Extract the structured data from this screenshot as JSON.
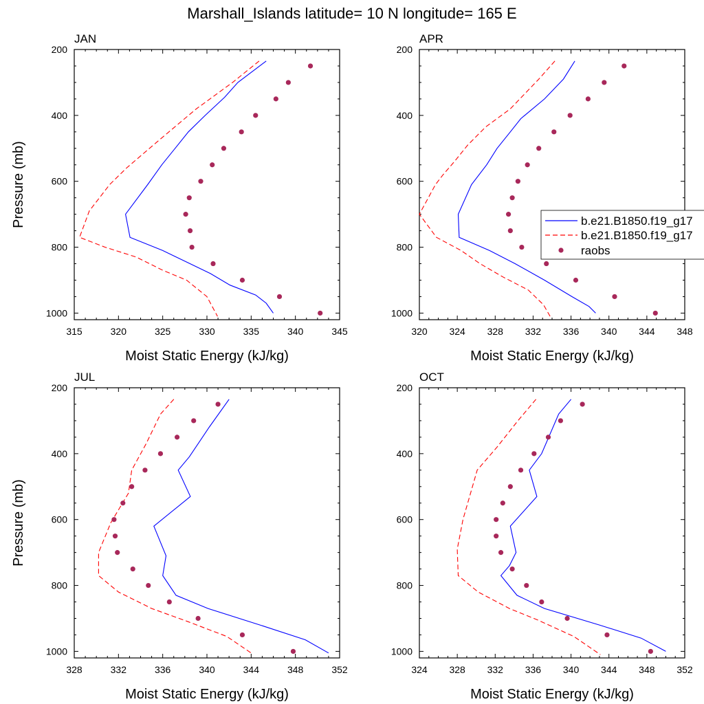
{
  "title": "Marshall_Islands  latitude= 10 N longitude= 165 E",
  "colors": {
    "series1": "#0000ff",
    "series2": "#ff0000",
    "raobs": "#a8285a"
  },
  "legend": {
    "placement": "right of APR panel",
    "entries": [
      "b.e21.B1850.f19_g17",
      "b.e21.B1850.f19_g17",
      "raobs"
    ]
  },
  "chart_data": [
    {
      "type": "line",
      "panel": "JAN",
      "xlabel": "Moist Static Energy (kJ/kg)",
      "ylabel": "Pressure (mb)",
      "xlim": [
        315,
        345
      ],
      "xticks": [
        "315",
        "320",
        "325",
        "330",
        "335",
        "340",
        "345"
      ],
      "ylim": [
        1020,
        200
      ],
      "yticks": [
        "200",
        "400",
        "600",
        "800",
        "1000"
      ],
      "series": [
        {
          "style": "solid",
          "color": "#0000ff",
          "points": [
            [
              336.7,
              235
            ],
            [
              333.5,
              300
            ],
            [
              332.0,
              345
            ],
            [
              329.8,
              400
            ],
            [
              327.9,
              450
            ],
            [
              326.4,
              500
            ],
            [
              324.9,
              550
            ],
            [
              323.3,
              610
            ],
            [
              320.8,
              700
            ],
            [
              321.3,
              770
            ],
            [
              325.0,
              810
            ],
            [
              327.7,
              845
            ],
            [
              330.4,
              880
            ],
            [
              332.6,
              915
            ],
            [
              335.5,
              945
            ],
            [
              336.7,
              970
            ],
            [
              337.5,
              1000
            ]
          ]
        },
        {
          "style": "dashed",
          "color": "#ff0000",
          "points": [
            [
              335.9,
              235
            ],
            [
              332.9,
              300
            ],
            [
              330.6,
              345
            ],
            [
              328.8,
              380
            ],
            [
              325.7,
              450
            ],
            [
              323.5,
              500
            ],
            [
              320.9,
              560
            ],
            [
              319.0,
              610
            ],
            [
              316.7,
              690
            ],
            [
              315.6,
              770
            ],
            [
              318.5,
              800
            ],
            [
              322.0,
              830
            ],
            [
              325.0,
              870
            ],
            [
              327.7,
              900
            ],
            [
              330.0,
              950
            ],
            [
              331.2,
              1010
            ]
          ]
        },
        {
          "style": "dots",
          "color": "#a8285a",
          "points": [
            [
              341.7,
              250
            ],
            [
              339.2,
              300
            ],
            [
              337.8,
              350
            ],
            [
              335.5,
              400
            ],
            [
              333.9,
              450
            ],
            [
              331.9,
              500
            ],
            [
              330.6,
              550
            ],
            [
              329.3,
              600
            ],
            [
              328.0,
              650
            ],
            [
              327.6,
              700
            ],
            [
              328.1,
              750
            ],
            [
              328.3,
              800
            ],
            [
              330.7,
              850
            ],
            [
              334.0,
              900
            ],
            [
              338.2,
              950
            ],
            [
              342.8,
              1000
            ]
          ]
        }
      ]
    },
    {
      "type": "line",
      "panel": "APR",
      "xlabel": "Moist Static Energy (kJ/kg)",
      "ylabel": "",
      "xlim": [
        320,
        348
      ],
      "xticks": [
        "320",
        "324",
        "328",
        "332",
        "336",
        "340",
        "344",
        "348"
      ],
      "ylim": [
        1020,
        200
      ],
      "yticks": [
        "200",
        "400",
        "600",
        "800",
        "1000"
      ],
      "series": [
        {
          "style": "solid",
          "color": "#0000ff",
          "points": [
            [
              336.4,
              235
            ],
            [
              335.2,
              290
            ],
            [
              333.2,
              350
            ],
            [
              330.7,
              410
            ],
            [
              329.6,
              450
            ],
            [
              328.2,
              500
            ],
            [
              327.1,
              550
            ],
            [
              325.5,
              610
            ],
            [
              324.1,
              700
            ],
            [
              324.2,
              770
            ],
            [
              327.4,
              810
            ],
            [
              330.1,
              850
            ],
            [
              333.2,
              900
            ],
            [
              336.1,
              950
            ],
            [
              337.9,
              980
            ],
            [
              338.6,
              1000
            ]
          ]
        },
        {
          "style": "dashed",
          "color": "#ff0000",
          "points": [
            [
              334.3,
              235
            ],
            [
              332.6,
              290
            ],
            [
              329.6,
              380
            ],
            [
              327.0,
              435
            ],
            [
              325.1,
              490
            ],
            [
              323.7,
              540
            ],
            [
              322.5,
              580
            ],
            [
              321.7,
              610
            ],
            [
              320.0,
              700
            ],
            [
              321.8,
              770
            ],
            [
              324.4,
              810
            ],
            [
              326.4,
              850
            ],
            [
              328.8,
              890
            ],
            [
              331.5,
              930
            ],
            [
              333.1,
              975
            ],
            [
              333.8,
              1010
            ]
          ]
        },
        {
          "style": "dots",
          "color": "#a8285a",
          "points": [
            [
              341.6,
              250
            ],
            [
              339.5,
              300
            ],
            [
              337.8,
              350
            ],
            [
              335.9,
              400
            ],
            [
              334.2,
              450
            ],
            [
              332.6,
              500
            ],
            [
              331.4,
              550
            ],
            [
              330.4,
              600
            ],
            [
              329.8,
              650
            ],
            [
              329.4,
              700
            ],
            [
              329.6,
              750
            ],
            [
              330.8,
              800
            ],
            [
              333.4,
              850
            ],
            [
              336.5,
              900
            ],
            [
              340.6,
              950
            ],
            [
              344.9,
              1000
            ]
          ]
        }
      ]
    },
    {
      "type": "line",
      "panel": "JUL",
      "xlabel": "Moist Static Energy (kJ/kg)",
      "ylabel": "Pressure (mb)",
      "xlim": [
        328,
        352
      ],
      "xticks": [
        "328",
        "332",
        "336",
        "340",
        "344",
        "348",
        "352"
      ],
      "ylim": [
        1020,
        200
      ],
      "yticks": [
        "200",
        "400",
        "600",
        "800",
        "1000"
      ],
      "series": [
        {
          "style": "solid",
          "color": "#0000ff",
          "points": [
            [
              342.0,
              235
            ],
            [
              340.2,
              320
            ],
            [
              338.4,
              410
            ],
            [
              337.4,
              450
            ],
            [
              338.5,
              530
            ],
            [
              335.2,
              620
            ],
            [
              336.3,
              710
            ],
            [
              336.0,
              770
            ],
            [
              337.2,
              830
            ],
            [
              340.1,
              870
            ],
            [
              344.8,
              920
            ],
            [
              348.9,
              965
            ],
            [
              351.0,
              1005
            ]
          ]
        },
        {
          "style": "dashed",
          "color": "#ff0000",
          "points": [
            [
              337.0,
              235
            ],
            [
              335.8,
              280
            ],
            [
              334.5,
              370
            ],
            [
              333.2,
              450
            ],
            [
              332.9,
              520
            ],
            [
              331.3,
              610
            ],
            [
              330.2,
              700
            ],
            [
              330.2,
              770
            ],
            [
              332.0,
              820
            ],
            [
              335.0,
              870
            ],
            [
              338.3,
              910
            ],
            [
              341.8,
              955
            ],
            [
              344.0,
              1005
            ]
          ]
        },
        {
          "style": "dots",
          "color": "#a8285a",
          "points": [
            [
              341.0,
              250
            ],
            [
              338.8,
              300
            ],
            [
              337.3,
              350
            ],
            [
              335.8,
              400
            ],
            [
              334.4,
              450
            ],
            [
              333.2,
              500
            ],
            [
              332.4,
              550
            ],
            [
              331.6,
              600
            ],
            [
              331.7,
              650
            ],
            [
              331.9,
              700
            ],
            [
              333.3,
              750
            ],
            [
              334.7,
              800
            ],
            [
              336.6,
              850
            ],
            [
              339.2,
              900
            ],
            [
              343.2,
              950
            ],
            [
              347.8,
              1000
            ]
          ]
        }
      ]
    },
    {
      "type": "line",
      "panel": "OCT",
      "xlabel": "Moist Static Energy (kJ/kg)",
      "ylabel": "",
      "xlim": [
        324,
        352
      ],
      "xticks": [
        "324",
        "328",
        "332",
        "336",
        "340",
        "344",
        "348",
        "352"
      ],
      "ylim": [
        1020,
        200
      ],
      "yticks": [
        "200",
        "400",
        "600",
        "800",
        "1000"
      ],
      "series": [
        {
          "style": "solid",
          "color": "#0000ff",
          "points": [
            [
              340.0,
              235
            ],
            [
              338.7,
              280
            ],
            [
              336.9,
              400
            ],
            [
              335.6,
              450
            ],
            [
              336.4,
              530
            ],
            [
              333.6,
              620
            ],
            [
              334.2,
              700
            ],
            [
              333.5,
              740
            ],
            [
              332.6,
              770
            ],
            [
              334.3,
              830
            ],
            [
              337.2,
              870
            ],
            [
              343.0,
              920
            ],
            [
              347.4,
              960
            ],
            [
              350.0,
              1000
            ]
          ]
        },
        {
          "style": "dashed",
          "color": "#ff0000",
          "points": [
            [
              336.3,
              235
            ],
            [
              334.4,
              300
            ],
            [
              332.2,
              380
            ],
            [
              330.1,
              450
            ],
            [
              329.6,
              500
            ],
            [
              328.6,
              600
            ],
            [
              328.0,
              690
            ],
            [
              328.1,
              770
            ],
            [
              330.2,
              820
            ],
            [
              333.5,
              870
            ],
            [
              336.5,
              905
            ],
            [
              340.3,
              955
            ],
            [
              343.1,
              1010
            ]
          ]
        },
        {
          "style": "dots",
          "color": "#a8285a",
          "points": [
            [
              341.2,
              250
            ],
            [
              338.9,
              300
            ],
            [
              337.6,
              350
            ],
            [
              336.1,
              400
            ],
            [
              334.7,
              450
            ],
            [
              333.6,
              500
            ],
            [
              332.8,
              550
            ],
            [
              332.1,
              600
            ],
            [
              332.1,
              650
            ],
            [
              332.6,
              700
            ],
            [
              333.8,
              750
            ],
            [
              335.3,
              800
            ],
            [
              336.9,
              850
            ],
            [
              339.6,
              900
            ],
            [
              343.8,
              950
            ],
            [
              348.4,
              1000
            ]
          ]
        }
      ]
    }
  ]
}
